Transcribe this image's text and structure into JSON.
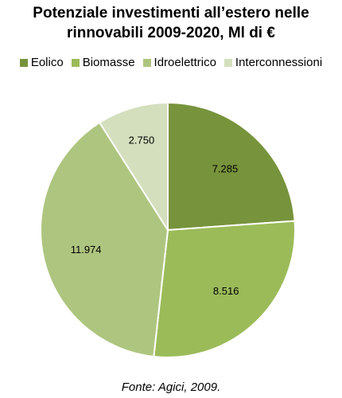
{
  "chart_data": {
    "type": "pie",
    "title_line1": "Potenziale investimenti all’estero nelle",
    "title_line2": "rinnovabili 2009-2020, Ml di €",
    "categories": [
      "Eolico",
      "Biomasse",
      "Idroelettrico",
      "Interconnessioni"
    ],
    "values": [
      7285,
      8516,
      11974,
      2750
    ],
    "labels": [
      "7.285",
      "8.516",
      "11.974",
      "2.750"
    ],
    "colors": [
      "#77933c",
      "#9bbb59",
      "#aec57f",
      "#d3dfbd"
    ],
    "legend_position": "top"
  },
  "source": "Fonte: Agici, 2009."
}
